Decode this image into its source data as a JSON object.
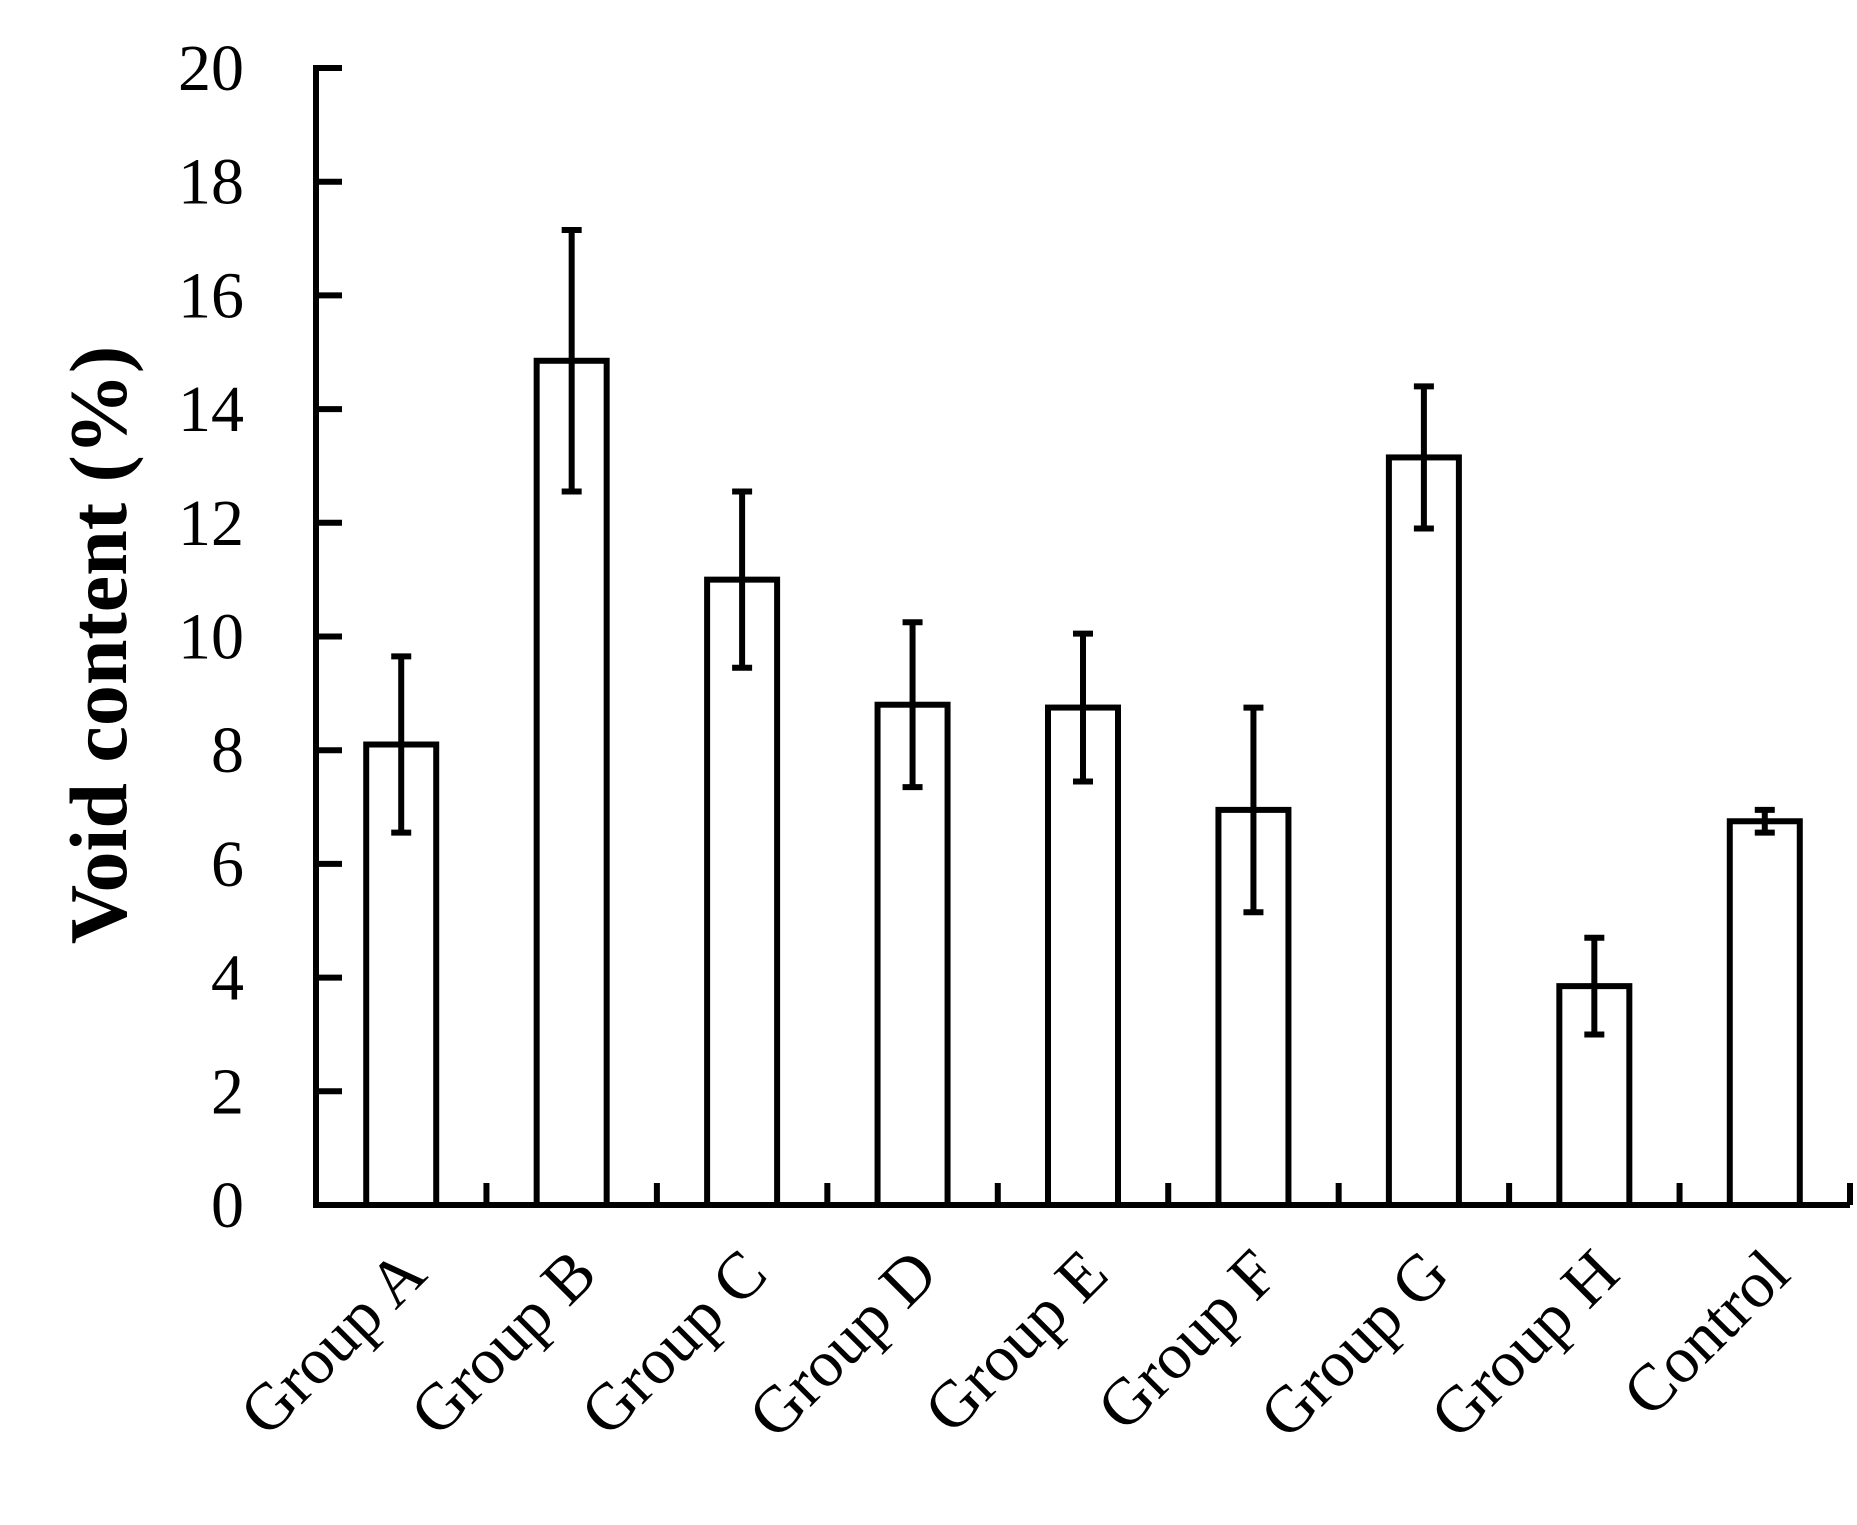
{
  "chart_data": {
    "type": "bar",
    "title": "",
    "xlabel": "",
    "ylabel": "Void content (%)",
    "ylim": [
      0,
      20
    ],
    "yticks": [
      0,
      2,
      4,
      6,
      8,
      10,
      12,
      14,
      16,
      18,
      20
    ],
    "grid": false,
    "categories": [
      "Group A",
      "Group B",
      "Group C",
      "Group D",
      "Group E",
      "Group F",
      "Group G",
      "Group H",
      "Control"
    ],
    "values": [
      8.1,
      14.85,
      11.0,
      8.8,
      8.75,
      6.95,
      13.15,
      3.85,
      6.75
    ],
    "errors": [
      1.55,
      2.3,
      1.55,
      1.45,
      1.3,
      1.8,
      1.25,
      0.85,
      0.2
    ],
    "colors": {
      "bar_fill": "#ffffff",
      "bar_stroke": "#000000",
      "axis": "#000000"
    }
  }
}
